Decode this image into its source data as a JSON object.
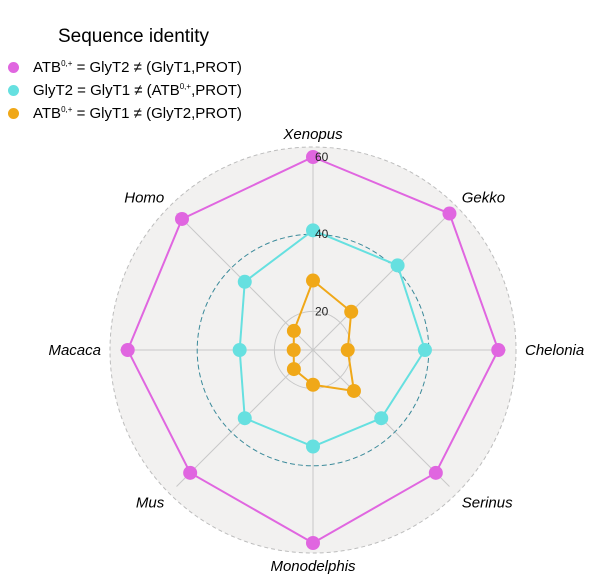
{
  "chart_data": {
    "type": "radar",
    "legend_title": "Sequence identity",
    "categories": [
      "Xenopus",
      "Gekko",
      "Chelonia",
      "Serinus",
      "Monodelphis",
      "Mus",
      "Macaca",
      "Homo"
    ],
    "rlim": [
      10,
      60
    ],
    "ticks": [
      20,
      40,
      60
    ],
    "series": [
      {
        "name_parts": [
          "ATB",
          "0,+",
          " = GlyT2 ≠ (GlyT1,PROT)"
        ],
        "color": "#e066e0",
        "values": [
          60,
          60,
          58,
          55,
          60,
          55,
          58,
          58
        ]
      },
      {
        "name_parts": [
          "GlyT2 = GlyT1 ≠ (ATB",
          "0,+",
          ",PROT)"
        ],
        "color": "#66e0e0",
        "values": [
          41,
          41,
          39,
          35,
          35,
          35,
          29,
          35
        ]
      },
      {
        "name_parts": [
          "ATB",
          "0,+",
          " = GlyT1 ≠ (GlyT2,PROT)"
        ],
        "color": "#f0a818",
        "values": [
          28,
          24,
          19,
          25,
          19,
          17,
          15,
          17
        ]
      }
    ]
  }
}
